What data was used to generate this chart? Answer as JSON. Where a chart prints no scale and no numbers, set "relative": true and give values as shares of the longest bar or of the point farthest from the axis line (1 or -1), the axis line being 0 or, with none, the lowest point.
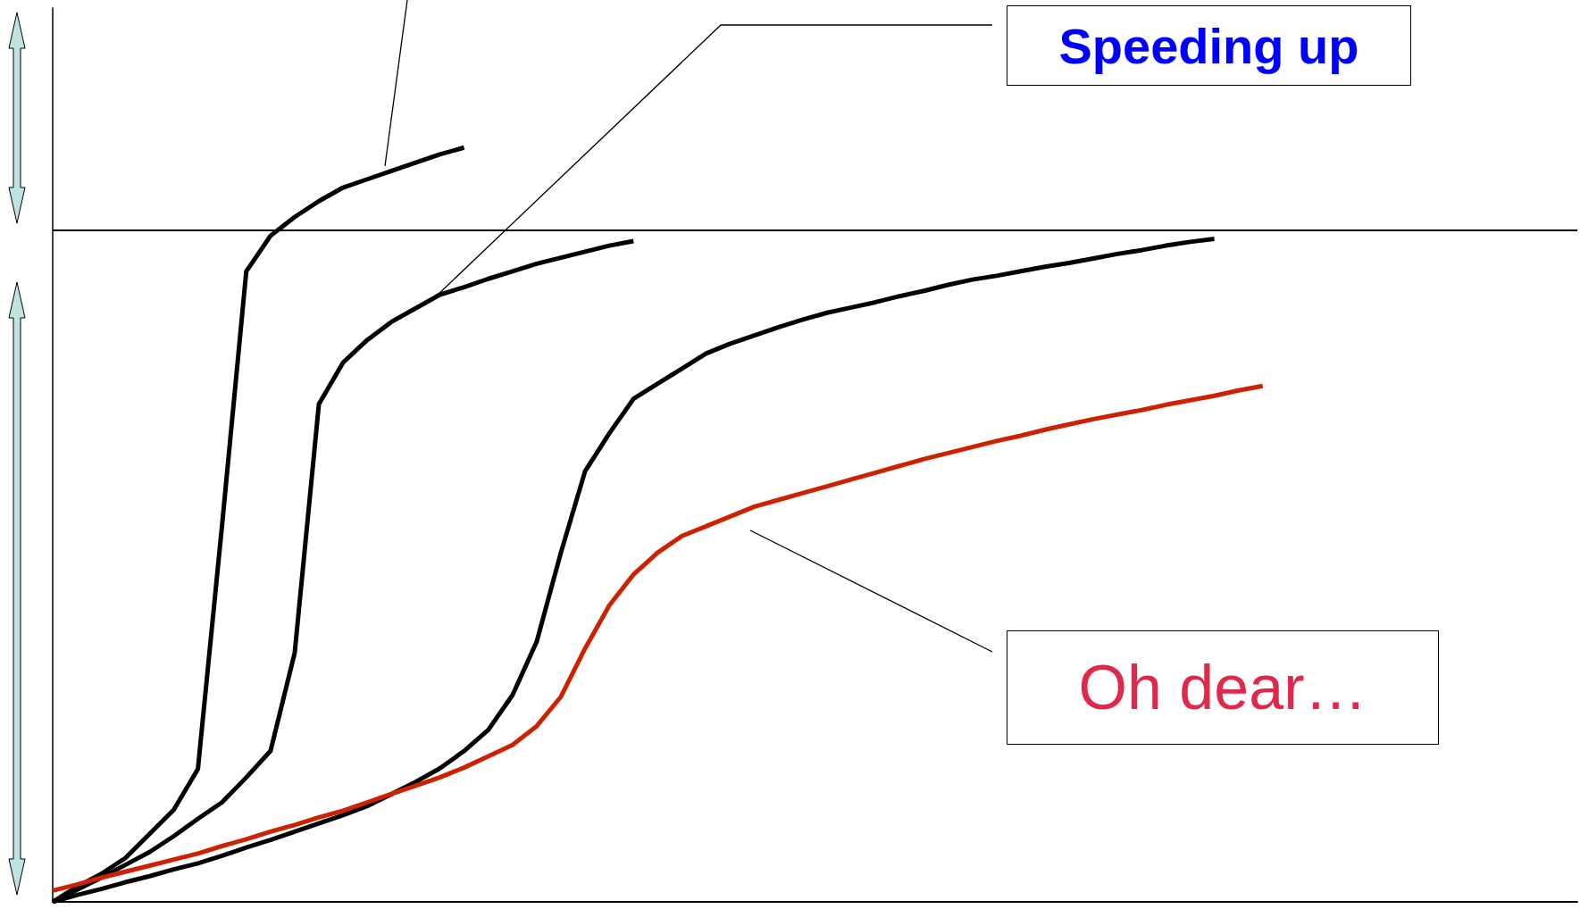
{
  "chart_data": {
    "type": "line",
    "relative": true,
    "grid": false,
    "marker": "none",
    "line_style": "solid",
    "categories": [
      null,
      null,
      null,
      null,
      null,
      null,
      null,
      null,
      null,
      null,
      null,
      null,
      null,
      null,
      null,
      null,
      null,
      null,
      null,
      null,
      null,
      null,
      null,
      null,
      null,
      null,
      null,
      null,
      null,
      null,
      null,
      null,
      null,
      null,
      null,
      null,
      null,
      null,
      null,
      null,
      null,
      null,
      null,
      null,
      null,
      null,
      null,
      null,
      null,
      null,
      null,
      null,
      null,
      null,
      null,
      null,
      null,
      null,
      null,
      null,
      null,
      null,
      null,
      null
    ],
    "series": [
      {
        "color": "#000000",
        "values": [
          0,
          0.02,
          0.037,
          0.058,
          0.09,
          0.122,
          0.176,
          0.5,
          0.836,
          0.883,
          0.908,
          0.929,
          0.947,
          0.958,
          0.969,
          0.98,
          0.991,
          1,
          null,
          null,
          null,
          null,
          null,
          null,
          null,
          null,
          null,
          null,
          null,
          null,
          null,
          null,
          null,
          null,
          null,
          null,
          null,
          null,
          null,
          null,
          null,
          null,
          null,
          null,
          null,
          null,
          null,
          null,
          null,
          null,
          null,
          null,
          null,
          null,
          null,
          null,
          null,
          null,
          null,
          null,
          null,
          null,
          null,
          null
        ]
      },
      {
        "color": "#000000",
        "values": [
          0,
          0.016,
          0.032,
          0.049,
          0.066,
          0.087,
          0.11,
          0.132,
          0.165,
          0.2,
          0.33,
          0.66,
          0.715,
          0.745,
          0.769,
          0.787,
          0.805,
          0.815,
          0.826,
          0.836,
          0.846,
          0.854,
          0.862,
          0.87,
          0.876,
          null,
          null,
          null,
          null,
          null,
          null,
          null,
          null,
          null,
          null,
          null,
          null,
          null,
          null,
          null,
          null,
          null,
          null,
          null,
          null,
          null,
          null,
          null,
          null,
          null,
          null,
          null,
          null,
          null,
          null,
          null,
          null,
          null,
          null,
          null,
          null,
          null,
          null,
          null
        ]
      },
      {
        "color": "#000000",
        "values": [
          0,
          0.009,
          0.017,
          0.026,
          0.034,
          0.043,
          0.051,
          0.061,
          0.072,
          0.082,
          0.093,
          0.104,
          0.115,
          0.127,
          0.143,
          0.159,
          0.177,
          0.2,
          0.228,
          0.274,
          0.345,
          0.463,
          0.571,
          0.621,
          0.667,
          0.687,
          0.707,
          0.727,
          0.74,
          0.751,
          0.762,
          0.772,
          0.781,
          0.788,
          0.795,
          0.803,
          0.81,
          0.818,
          0.825,
          0.83,
          0.836,
          0.842,
          0.847,
          0.853,
          0.859,
          0.864,
          0.87,
          0.875,
          0.879,
          null,
          null,
          null,
          null,
          null,
          null,
          null,
          null,
          null,
          null,
          null,
          null,
          null,
          null,
          null
        ]
      },
      {
        "color": "#cc2200",
        "values": [
          0.015,
          0.023,
          0.032,
          0.04,
          0.048,
          0.056,
          0.064,
          0.074,
          0.083,
          0.093,
          0.102,
          0.112,
          0.121,
          0.132,
          0.143,
          0.154,
          0.165,
          0.178,
          0.193,
          0.208,
          0.233,
          0.272,
          0.336,
          0.393,
          0.434,
          0.463,
          0.485,
          0.498,
          0.511,
          0.524,
          0.533,
          0.542,
          0.551,
          0.56,
          0.569,
          0.578,
          0.587,
          0.595,
          0.603,
          0.611,
          0.618,
          0.626,
          0.633,
          0.64,
          0.646,
          0.652,
          0.659,
          0.665,
          0.671,
          0.678,
          0.684,
          null,
          null,
          null,
          null,
          null,
          null,
          null,
          null,
          null,
          null,
          null,
          null,
          null
        ]
      }
    ],
    "ref_lines": [
      {
        "axis": "y",
        "value": 0.891,
        "color": "#000000"
      }
    ],
    "annotations": [
      "Speeding up",
      "Oh dear…"
    ]
  }
}
